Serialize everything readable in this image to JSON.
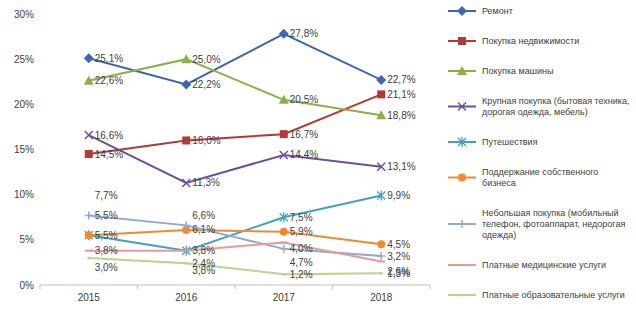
{
  "chart_data": {
    "type": "line",
    "categories": [
      "2015",
      "2016",
      "2017",
      "2018"
    ],
    "ylim": [
      0,
      30
    ],
    "yticks": [
      {
        "value": 0,
        "label": "0%"
      },
      {
        "value": 5,
        "label": "5%"
      },
      {
        "value": 10,
        "label": "10%"
      },
      {
        "value": 15,
        "label": "15%"
      },
      {
        "value": 20,
        "label": "20%"
      },
      {
        "value": 25,
        "label": "25%"
      },
      {
        "value": 30,
        "label": "30%"
      }
    ],
    "grid": false,
    "legend": "right",
    "data_labels": true,
    "series": [
      {
        "name": "Ремонт",
        "color": "#3d68b0",
        "marker": "diamond",
        "values": [
          25.1,
          22.2,
          27.8,
          22.7
        ],
        "value_labels": [
          "25,1%",
          "22,2%",
          "27,8%",
          "22,7%"
        ]
      },
      {
        "name": "Покупка недвижимости",
        "color": "#b03a36",
        "marker": "square",
        "values": [
          14.5,
          16.0,
          16.7,
          21.1
        ],
        "value_labels": [
          "14,5%",
          "16,0%",
          "16,7%",
          "21,1%"
        ]
      },
      {
        "name": "Покупка машины",
        "color": "#8db046",
        "marker": "triangle",
        "values": [
          22.6,
          25.0,
          20.5,
          18.8
        ],
        "value_labels": [
          "22,6%",
          "25,0%",
          "20,5%",
          "18,8%"
        ]
      },
      {
        "name": "Крупная покупка (бытовая техника, дорогая одежда, мебель)",
        "color": "#6e4f9a",
        "marker": "x",
        "values": [
          16.6,
          11.3,
          14.4,
          13.1
        ],
        "value_labels": [
          "16,6%",
          "11,3%",
          "14,4%",
          "13,1%"
        ]
      },
      {
        "name": "Путешествия",
        "color": "#3fa3bf",
        "marker": "star",
        "values": [
          5.5,
          3.8,
          7.5,
          9.9
        ],
        "value_labels": [
          "5,5%",
          "3,8%",
          "7,5%",
          "9,9%"
        ]
      },
      {
        "name": "Поддержание собственного бизнеса",
        "color": "#f08a2c",
        "marker": "circle",
        "values": [
          5.5,
          6.1,
          5.9,
          4.5
        ],
        "value_labels": [
          "5,5%",
          "6,1%",
          "5,9%",
          "4,5%"
        ]
      },
      {
        "name": "Небольшая покупка (мобильный телефон, фотоаппарат, недорогая одежда)",
        "color": "#8fa9d6",
        "marker": "plus",
        "values": [
          7.7,
          6.6,
          4.0,
          3.2
        ],
        "value_labels": [
          "7,7%",
          "6,6%",
          "4,0%",
          "3,2%"
        ]
      },
      {
        "name": "Платные медицинские услуги",
        "color": "#e89a98",
        "marker": "dash",
        "values": [
          3.8,
          3.8,
          4.7,
          2.6
        ],
        "value_labels": [
          "3,8%",
          "3,8%",
          "4,7%",
          "2,6%"
        ]
      },
      {
        "name": "Платные образовательные услуги",
        "color": "#b7d58c",
        "marker": "none",
        "values": [
          3.0,
          2.4,
          1.2,
          1.3
        ],
        "value_labels": [
          "3,0%",
          "2,4%",
          "1,2%",
          "1,3%"
        ]
      }
    ]
  }
}
